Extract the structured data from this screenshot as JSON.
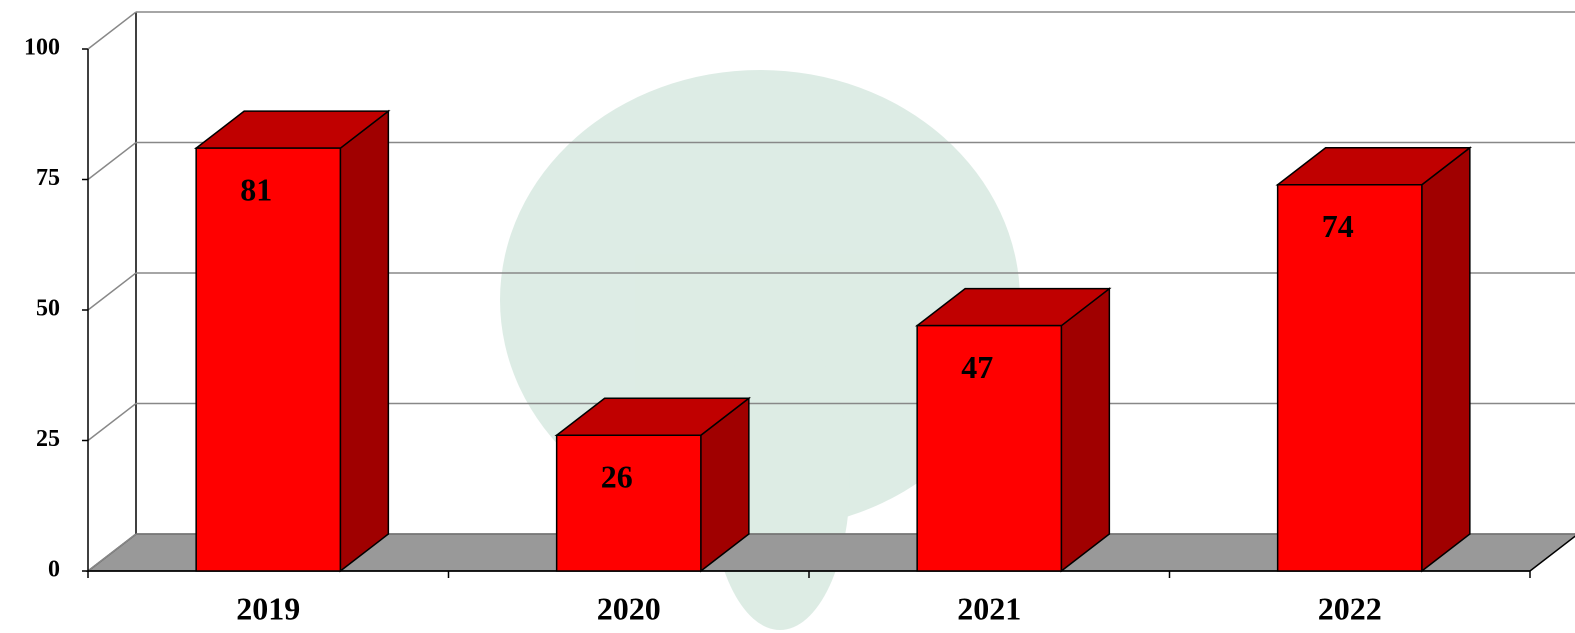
{
  "chart_data": {
    "type": "bar3d",
    "categories": [
      "2019",
      "2020",
      "2021",
      "2022"
    ],
    "values": [
      81,
      26,
      47,
      74
    ],
    "color": "#ff0000",
    "ylim": [
      0,
      100
    ],
    "yticks": [
      0,
      25,
      50,
      75,
      100
    ],
    "grid": true
  }
}
